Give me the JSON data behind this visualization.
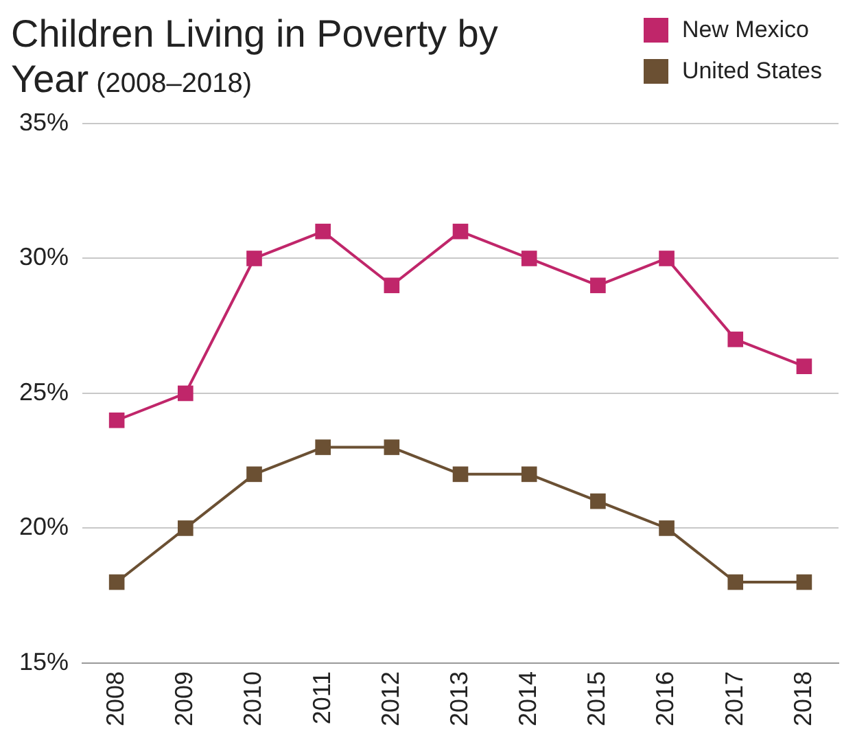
{
  "chart_data": {
    "type": "line",
    "title": "Children Living in Poverty by Year",
    "subtitle": "(2008–2018)",
    "categories": [
      "2008",
      "2009",
      "2010",
      "2011",
      "2012",
      "2013",
      "2014",
      "2015",
      "2016",
      "2017",
      "2018"
    ],
    "series": [
      {
        "name": "New Mexico",
        "color": "#c0266a",
        "values": [
          24,
          25,
          30,
          31,
          29,
          31,
          30,
          29,
          30,
          27,
          26
        ]
      },
      {
        "name": "United States",
        "color": "#6b5033",
        "values": [
          18,
          20,
          22,
          23,
          23,
          22,
          22,
          21,
          20,
          18,
          18
        ]
      }
    ],
    "ylim": [
      15,
      35
    ],
    "yticks": [
      {
        "value": 15,
        "label": "15%"
      },
      {
        "value": 20,
        "label": "20%"
      },
      {
        "value": 25,
        "label": "25%"
      },
      {
        "value": 30,
        "label": "30%"
      },
      {
        "value": 35,
        "label": "35%"
      }
    ],
    "grid": "y",
    "legend": "top right",
    "marker": "square",
    "line_style": "solid"
  }
}
